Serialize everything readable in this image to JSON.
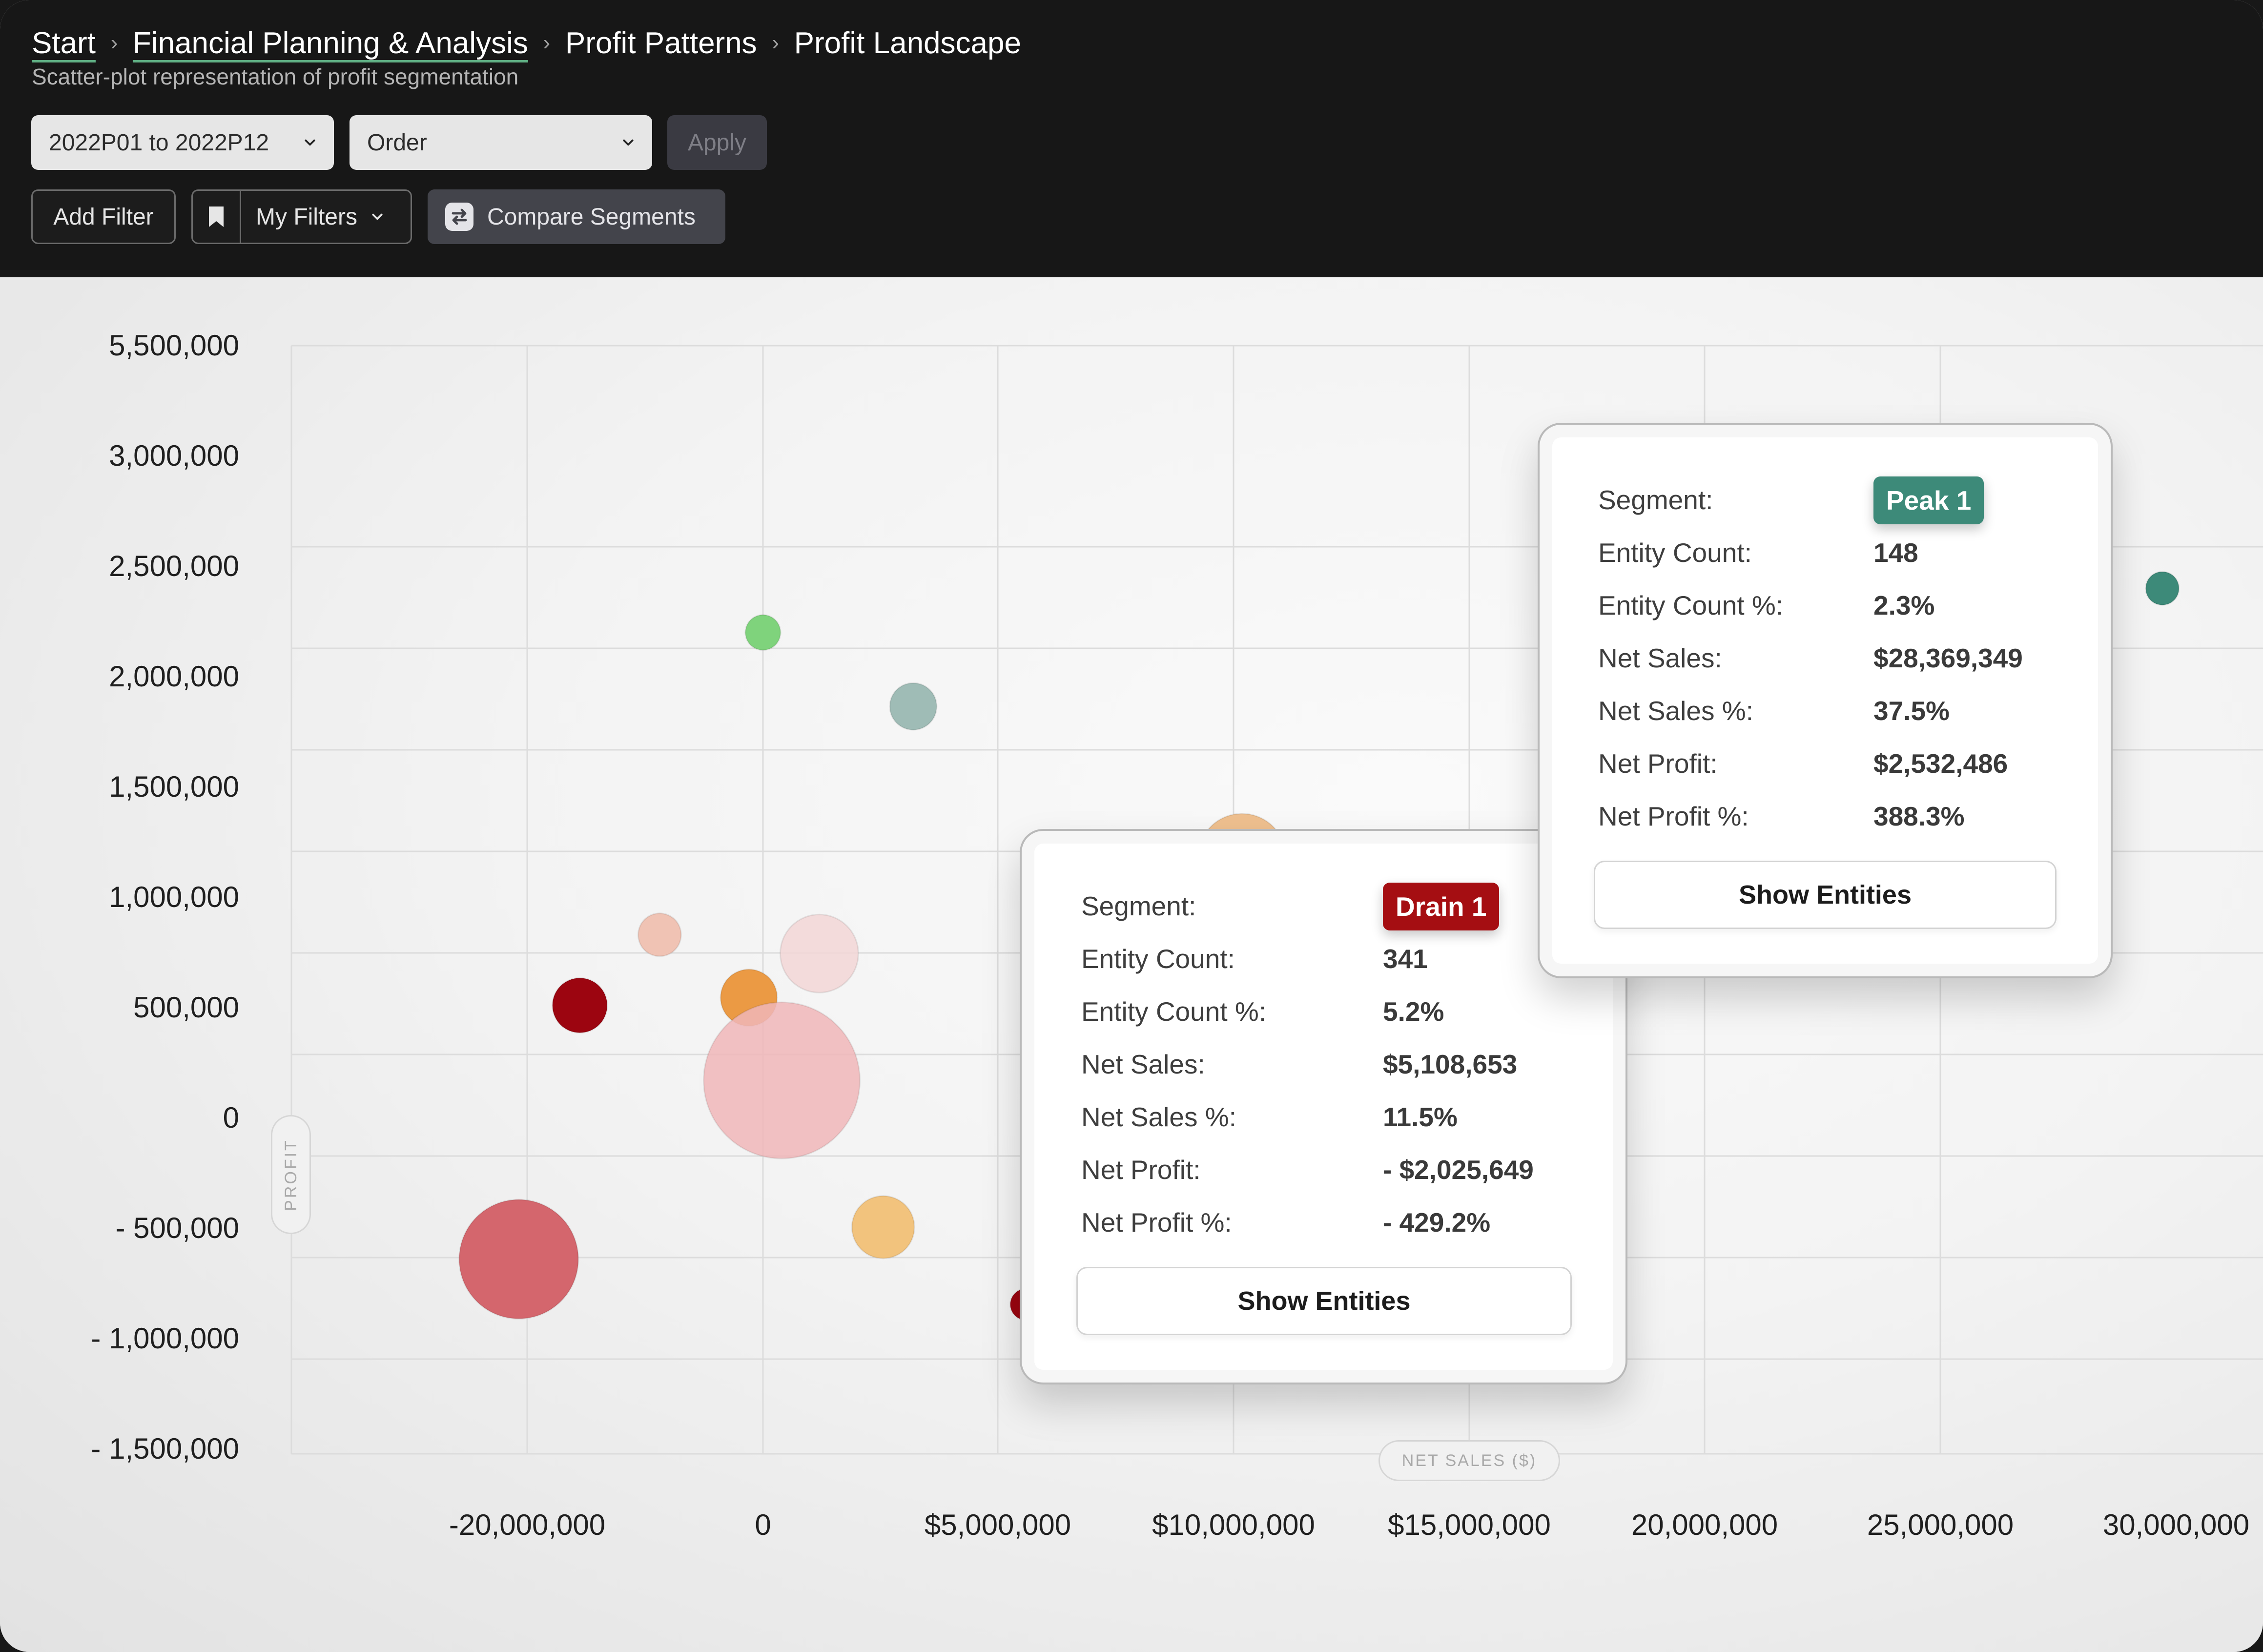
{
  "breadcrumb": {
    "items": [
      {
        "label": "Start",
        "link": true
      },
      {
        "label": "Financial Planning & Analysis",
        "link": true
      },
      {
        "label": "Profit Patterns",
        "link": false
      },
      {
        "label": "Profit Landscape",
        "link": false
      }
    ],
    "separator": "›"
  },
  "subtitle": "Scatter-plot representation of profit segmentation",
  "filters": {
    "period_select": "2022P01 to 2022P12",
    "dimension_select": "Order",
    "apply_label": "Apply",
    "add_filter_label": "Add Filter",
    "my_filters_label": "My Filters",
    "compare_label": "Compare Segments"
  },
  "axis_labels": {
    "y": "PROFIT",
    "x": "NET SALES ($)"
  },
  "colors": {
    "header_bg": "#171717",
    "peak": "#3d8a79",
    "drain": "#a50e12",
    "link_underline": "#5fae83"
  },
  "chart_data": {
    "type": "scatter",
    "xlabel": "NET SALES ($)",
    "ylabel": "PROFIT",
    "x_ticks": [
      "-20,000,000",
      "0",
      "$5,000,000",
      "$10,000,000",
      "$15,000,000",
      "20,000,000",
      "25,000,000",
      "30,000,000"
    ],
    "y_ticks": [
      "5,500,000",
      "3,000,000",
      "2,500,000",
      "2,000,000",
      "1,500,000",
      "1,000,000",
      "500,000",
      "0",
      "- 500,000",
      "- 1,000,000",
      "- 1,500,000"
    ],
    "grid": true,
    "points": [
      {
        "x": 0,
        "y": 2200000,
        "size": 18,
        "color": "#7fd37c",
        "opacity": 1
      },
      {
        "x": 3200000,
        "y": 1865000,
        "size": 24,
        "color": "#9fbcb6",
        "opacity": 1
      },
      {
        "x": 10200000,
        "y": 1180000,
        "size": 45,
        "color": "#efc08f",
        "opacity": 1
      },
      {
        "x": -2200000,
        "y": 830000,
        "size": 22,
        "color": "#f0c3b4",
        "opacity": 1
      },
      {
        "x": 1200000,
        "y": 745000,
        "size": 40,
        "color": "#f2d6d6",
        "opacity": 0.85
      },
      {
        "x": -3900000,
        "y": 510000,
        "size": 28,
        "color": "#9c0510",
        "opacity": 1
      },
      {
        "x": -300000,
        "y": 545000,
        "size": 29,
        "color": "#eb9a44",
        "opacity": 1
      },
      {
        "x": 400000,
        "y": 170000,
        "size": 80,
        "color": "#f0b6b8",
        "opacity": 0.85
      },
      {
        "x": 2560000,
        "y": -495000,
        "size": 32,
        "color": "#f2c37d",
        "opacity": 1
      },
      {
        "x": -5200000,
        "y": -640000,
        "size": 61,
        "color": "#d4666d",
        "opacity": 1
      },
      {
        "x": 5600000,
        "y": -845000,
        "size": 16,
        "color": "#9c0510",
        "opacity": 1
      },
      {
        "x": 29800000,
        "y": 2400000,
        "size": 17,
        "color": "#3d8a79",
        "opacity": 1
      }
    ]
  },
  "tooltips": {
    "peak": {
      "segment_label": "Segment:",
      "segment": "Peak 1",
      "rows": [
        {
          "label": "Entity Count:",
          "value": "148"
        },
        {
          "label": "Entity Count %:",
          "value": "2.3%"
        },
        {
          "label": "Net Sales:",
          "value": "$28,369,349"
        },
        {
          "label": "Net Sales %:",
          "value": "37.5%"
        },
        {
          "label": "Net Profit:",
          "value": "$2,532,486"
        },
        {
          "label": "Net Profit %:",
          "value": "388.3%"
        }
      ],
      "button": "Show Entities"
    },
    "drain": {
      "segment_label": "Segment:",
      "segment": "Drain 1",
      "rows": [
        {
          "label": "Entity Count:",
          "value": "341"
        },
        {
          "label": "Entity Count %:",
          "value": "5.2%"
        },
        {
          "label": "Net Sales:",
          "value": "$5,108,653"
        },
        {
          "label": "Net Sales %:",
          "value": "11.5%"
        },
        {
          "label": "Net Profit:",
          "value": "- $2,025,649"
        },
        {
          "label": "Net Profit %:",
          "value": "- 429.2%"
        }
      ],
      "button": "Show Entities"
    }
  }
}
